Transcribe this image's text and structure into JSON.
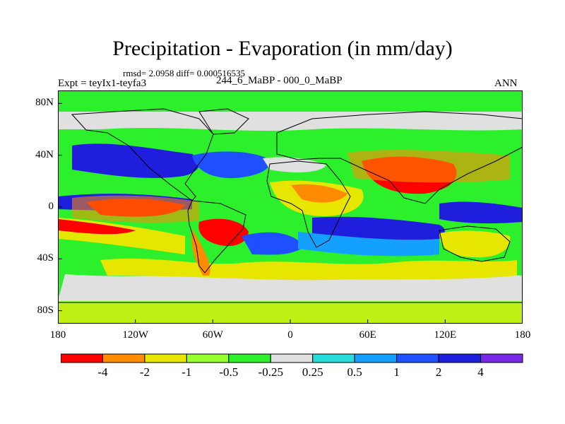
{
  "title": "Precipitation - Evaporation (in mm/day)",
  "stats_line": "rmsd= 2.0958 diff= 0.000516535",
  "expt_label": "Expt = teyIx1-teyfa3",
  "period_label": "244_6_MaBP - 000_0_MaBP",
  "season_label": "ANN",
  "y_axis": {
    "ticks": [
      "80N",
      "40N",
      "0",
      "40S",
      "80S"
    ],
    "values": [
      80,
      40,
      0,
      -40,
      -80
    ]
  },
  "x_axis": {
    "ticks": [
      "180",
      "120W",
      "60W",
      "0",
      "60E",
      "120E",
      "180"
    ],
    "values": [
      -180,
      -120,
      -60,
      0,
      60,
      120,
      180
    ]
  },
  "colorbar": {
    "colors": [
      "#ff0000",
      "#ff8c00",
      "#e6e600",
      "#96ff2d",
      "#2df02d",
      "#e0e0e0",
      "#28dcdc",
      "#14a0ff",
      "#1e50ff",
      "#1e1edc",
      "#7828e6"
    ],
    "labels": [
      "-4",
      "-2",
      "-1",
      "-0.5",
      "-0.25",
      "0.25",
      "0.5",
      "1",
      "2",
      "4"
    ]
  },
  "colors": {
    "land_outline": "#000000",
    "frame": "#000000"
  }
}
